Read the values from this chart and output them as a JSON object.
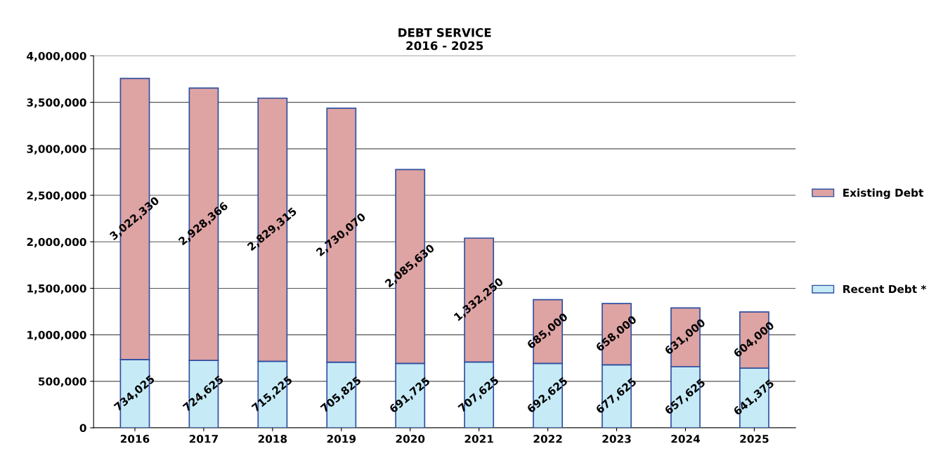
{
  "chart_data": {
    "type": "bar",
    "title": "DEBT SERVICE\n2016 - 2025",
    "stacked": true,
    "grid": "y",
    "legend": "right",
    "categories": [
      "2016",
      "2017",
      "2018",
      "2019",
      "2020",
      "2021",
      "2022",
      "2023",
      "2024",
      "2025"
    ],
    "series": [
      {
        "name": "Recent Debt *",
        "color": "#c6ebf7",
        "values": [
          734025,
          724625,
          715225,
          705825,
          691725,
          707625,
          692625,
          677625,
          657625,
          641375
        ],
        "value_labels": [
          "734,025",
          "724,625",
          "715,225",
          "705,825",
          "691,725",
          "707,625",
          "692,625",
          "677,625",
          "657,625",
          "641,375"
        ]
      },
      {
        "name": "Existing Debt",
        "color": "#dea3a3",
        "values": [
          3022330,
          2928366,
          2829315,
          2730070,
          2085630,
          1332250,
          685000,
          658000,
          631000,
          604000
        ],
        "value_labels": [
          "3,022,330",
          "2,928,366",
          "2,829,315",
          "2,730,070",
          "2,085,630",
          "1,332,250",
          "685,000",
          "658,000",
          "631,000",
          "604,000"
        ]
      }
    ],
    "ylim": [
      0,
      4000000
    ],
    "yticks": [
      0,
      {
        "value": 500000,
        "label": "500,000"
      },
      {
        "value": 1000000,
        "label": "1,000,000"
      },
      {
        "value": 1500000,
        "label": "1,500,000"
      },
      {
        "value": 2000000,
        "label": "2,000,000"
      },
      {
        "value": 2500000,
        "label": "2,500,000"
      },
      {
        "value": 3000000,
        "label": "3,000,000"
      },
      {
        "value": 3500000,
        "label": "3,500,000"
      },
      {
        "value": 4000000,
        "label": "4,000,000"
      }
    ]
  }
}
